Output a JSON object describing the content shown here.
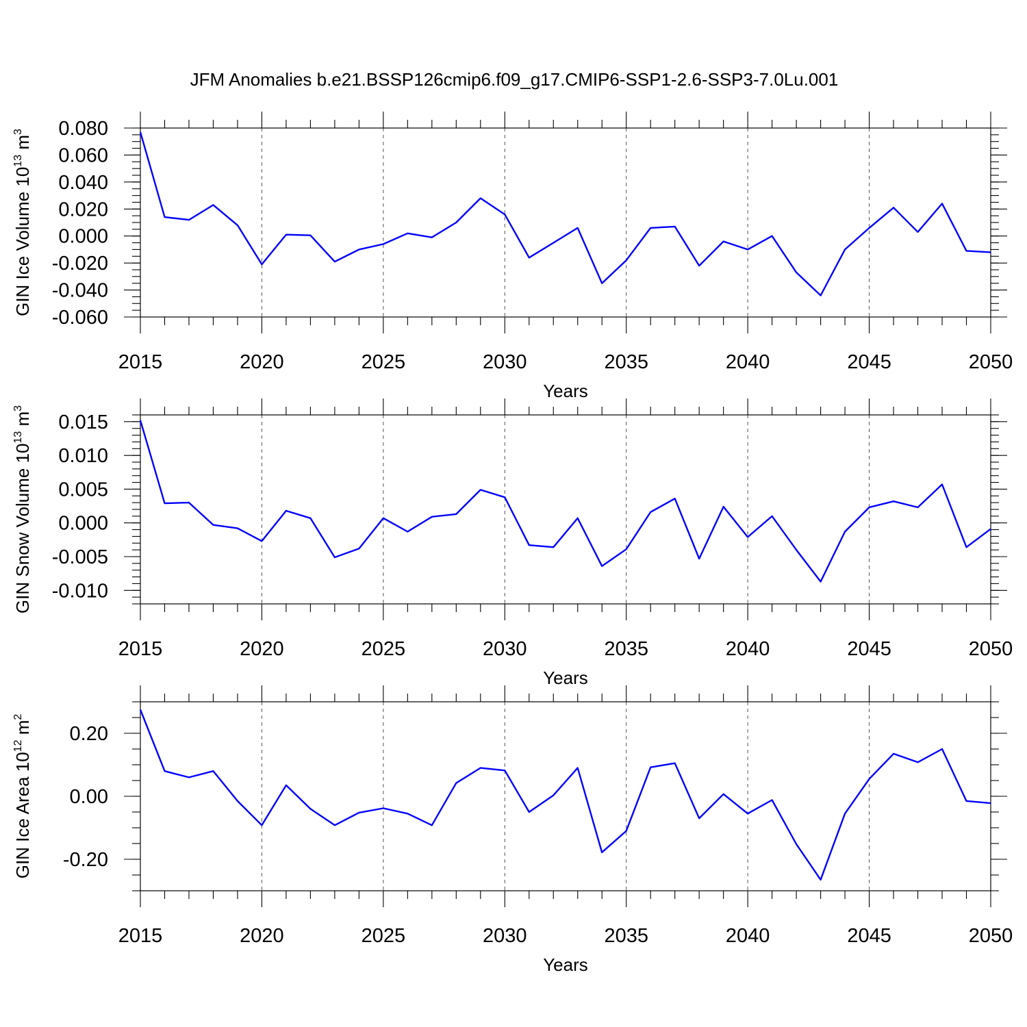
{
  "chart_data": {
    "title": "JFM Anomalies b.e21.BSSP126cmip6.f09_g17.CMIP6-SSP1-2.6-SSP3-7.0Lu.001",
    "panels": [
      {
        "type": "line",
        "ylabel": "GIN Ice Volume 10",
        "ylabel_exp": "13",
        "ylabel_unit": " m",
        "ylabel_unit_exp": "3",
        "xlabel": "Years",
        "xlim": [
          2015,
          2050
        ],
        "ylim": [
          -0.06,
          0.08
        ],
        "xticks": [
          "2015",
          "2020",
          "2025",
          "2030",
          "2035",
          "2040",
          "2045",
          "2050"
        ],
        "yticks": [
          {
            "v": 0.08,
            "label": "0.080"
          },
          {
            "v": 0.06,
            "label": "0.060"
          },
          {
            "v": 0.04,
            "label": "0.040"
          },
          {
            "v": 0.02,
            "label": "0.020"
          },
          {
            "v": 0.0,
            "label": "0.000"
          },
          {
            "v": -0.02,
            "label": "-0.020"
          },
          {
            "v": -0.04,
            "label": "-0.040"
          },
          {
            "v": -0.06,
            "label": "-0.060"
          }
        ],
        "yminor": 0.005,
        "x": [
          2015,
          2016,
          2017,
          2018,
          2019,
          2020,
          2021,
          2022,
          2023,
          2024,
          2025,
          2026,
          2027,
          2028,
          2029,
          2030,
          2031,
          2032,
          2033,
          2034,
          2035,
          2036,
          2037,
          2038,
          2039,
          2040,
          2041,
          2042,
          2043,
          2044,
          2045,
          2046,
          2047,
          2048,
          2049,
          2050
        ],
        "values": [
          0.077,
          0.014,
          0.012,
          0.023,
          0.008,
          -0.021,
          0.001,
          0.0005,
          -0.019,
          -0.01,
          -0.006,
          0.002,
          -0.001,
          0.01,
          0.028,
          0.016,
          -0.016,
          -0.005,
          0.006,
          -0.035,
          -0.018,
          0.006,
          0.007,
          -0.022,
          -0.004,
          -0.01,
          0.0,
          -0.027,
          -0.044,
          -0.01,
          0.006,
          0.021,
          0.003,
          0.024,
          -0.011,
          -0.012
        ]
      },
      {
        "type": "line",
        "ylabel": "GIN Snow Volume 10",
        "ylabel_exp": "13",
        "ylabel_unit": " m",
        "ylabel_unit_exp": "3",
        "xlabel": "Years",
        "xlim": [
          2015,
          2050
        ],
        "ylim": [
          -0.012,
          0.016
        ],
        "xticks": [
          "2015",
          "2020",
          "2025",
          "2030",
          "2035",
          "2040",
          "2045",
          "2050"
        ],
        "yticks": [
          {
            "v": 0.015,
            "label": "0.015"
          },
          {
            "v": 0.01,
            "label": "0.010"
          },
          {
            "v": 0.005,
            "label": "0.005"
          },
          {
            "v": 0.0,
            "label": "0.000"
          },
          {
            "v": -0.005,
            "label": "-0.005"
          },
          {
            "v": -0.01,
            "label": "-0.010"
          }
        ],
        "yminor": 0.001,
        "x": [
          2015,
          2016,
          2017,
          2018,
          2019,
          2020,
          2021,
          2022,
          2023,
          2024,
          2025,
          2026,
          2027,
          2028,
          2029,
          2030,
          2031,
          2032,
          2033,
          2034,
          2035,
          2036,
          2037,
          2038,
          2039,
          2040,
          2041,
          2042,
          2043,
          2044,
          2045,
          2046,
          2047,
          2048,
          2049,
          2050
        ],
        "values": [
          0.0152,
          0.0029,
          0.003,
          -0.0003,
          -0.0008,
          -0.0027,
          0.0018,
          0.0007,
          -0.0051,
          -0.0038,
          0.0007,
          -0.0013,
          0.0009,
          0.0013,
          0.0049,
          0.0038,
          -0.0033,
          -0.0036,
          0.0007,
          -0.0064,
          -0.0039,
          0.0016,
          0.0036,
          -0.0053,
          0.0024,
          -0.0021,
          0.001,
          -0.004,
          -0.0087,
          -0.0013,
          0.0023,
          0.0032,
          0.0023,
          0.0057,
          -0.0036,
          -0.0009
        ]
      },
      {
        "type": "line",
        "ylabel": "GIN Ice Area 10",
        "ylabel_exp": "12",
        "ylabel_unit": " m",
        "ylabel_unit_exp": "2",
        "xlabel": "Years",
        "xlim": [
          2015,
          2050
        ],
        "ylim": [
          -0.3,
          0.3
        ],
        "xticks": [
          "2015",
          "2020",
          "2025",
          "2030",
          "2035",
          "2040",
          "2045",
          "2050"
        ],
        "yticks": [
          {
            "v": 0.2,
            "label": "0.20"
          },
          {
            "v": 0.0,
            "label": "0.00"
          },
          {
            "v": -0.2,
            "label": "-0.20"
          }
        ],
        "yminor": 0.05,
        "x": [
          2015,
          2016,
          2017,
          2018,
          2019,
          2020,
          2021,
          2022,
          2023,
          2024,
          2025,
          2026,
          2027,
          2028,
          2029,
          2030,
          2031,
          2032,
          2033,
          2034,
          2035,
          2036,
          2037,
          2038,
          2039,
          2040,
          2041,
          2042,
          2043,
          2044,
          2045,
          2046,
          2047,
          2048,
          2049,
          2050
        ],
        "values": [
          0.275,
          0.08,
          0.06,
          0.08,
          -0.015,
          -0.092,
          0.035,
          -0.04,
          -0.092,
          -0.052,
          -0.038,
          -0.055,
          -0.092,
          0.042,
          0.09,
          0.082,
          -0.05,
          0.003,
          0.09,
          -0.178,
          -0.11,
          0.092,
          0.105,
          -0.07,
          0.007,
          -0.055,
          -0.012,
          -0.152,
          -0.265,
          -0.055,
          0.055,
          0.135,
          0.108,
          0.15,
          -0.015,
          -0.022
        ]
      }
    ]
  }
}
